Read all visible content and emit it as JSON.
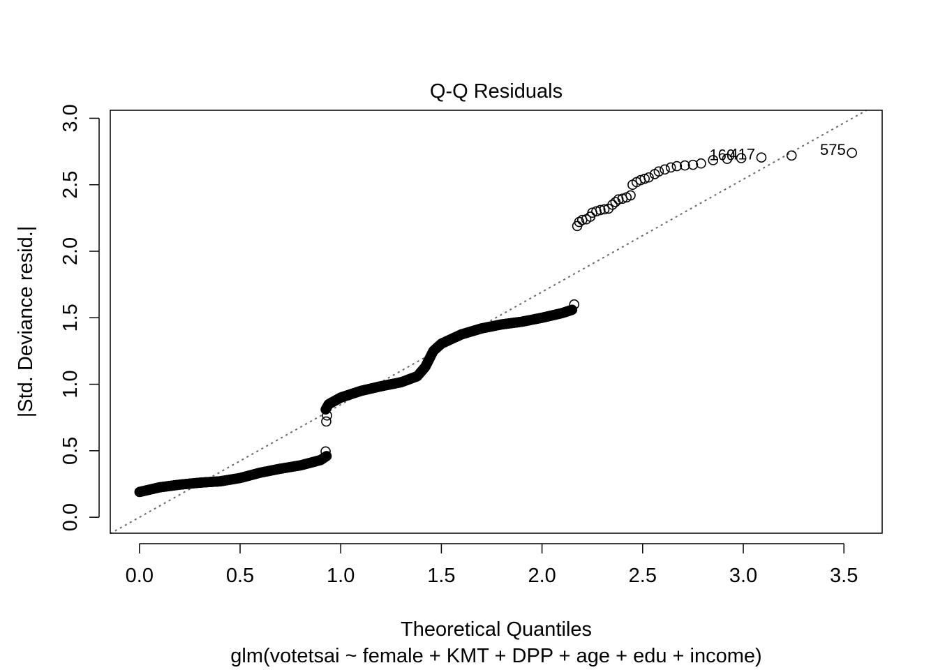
{
  "chart_data": {
    "type": "scatter",
    "title": "Q-Q Residuals",
    "xlabel": "Theoretical Quantiles",
    "ylabel": "|Std. Deviance resid.|",
    "subtitle": "glm(votetsai ~ female + KMT + DPP + age + edu + income)",
    "xlim": [
      -0.145,
      3.69
    ],
    "ylim": [
      -0.12,
      3.06
    ],
    "xticks": [
      "0.0",
      "0.5",
      "1.0",
      "1.5",
      "2.0",
      "2.5",
      "3.0",
      "3.5"
    ],
    "yticks": [
      "0.0",
      "0.5",
      "1.0",
      "1.5",
      "2.0",
      "2.5",
      "3.0"
    ],
    "grid": false,
    "reference_line": {
      "style": "dotted",
      "slope": 0.847,
      "intercept": 0.0,
      "color": "#666666"
    },
    "segments": [
      {
        "x": [
          0.0,
          0.1,
          0.2,
          0.3,
          0.4,
          0.5,
          0.6,
          0.7,
          0.8,
          0.9,
          0.93
        ],
        "y": [
          0.19,
          0.225,
          0.245,
          0.26,
          0.27,
          0.295,
          0.335,
          0.365,
          0.39,
          0.43,
          0.46
        ],
        "n": 350
      },
      {
        "x": [
          0.925,
          0.94,
          1.0,
          1.1,
          1.2,
          1.3,
          1.38,
          1.42,
          1.46,
          1.5,
          1.6,
          1.7,
          1.8,
          1.9,
          2.0,
          2.1,
          2.15
        ],
        "y": [
          0.81,
          0.85,
          0.9,
          0.95,
          0.985,
          1.015,
          1.06,
          1.13,
          1.25,
          1.305,
          1.375,
          1.42,
          1.45,
          1.47,
          1.5,
          1.535,
          1.56
        ],
        "n": 540
      }
    ],
    "points": [
      {
        "x": 0.925,
        "y": 0.495
      },
      {
        "x": 0.928,
        "y": 0.72
      },
      {
        "x": 0.932,
        "y": 0.765
      },
      {
        "x": 2.16,
        "y": 1.6
      },
      {
        "x": 2.175,
        "y": 2.19
      },
      {
        "x": 2.185,
        "y": 2.22
      },
      {
        "x": 2.2,
        "y": 2.235
      },
      {
        "x": 2.22,
        "y": 2.24
      },
      {
        "x": 2.24,
        "y": 2.26
      },
      {
        "x": 2.25,
        "y": 2.29
      },
      {
        "x": 2.27,
        "y": 2.3
      },
      {
        "x": 2.29,
        "y": 2.31
      },
      {
        "x": 2.31,
        "y": 2.315
      },
      {
        "x": 2.33,
        "y": 2.32
      },
      {
        "x": 2.35,
        "y": 2.35
      },
      {
        "x": 2.365,
        "y": 2.37
      },
      {
        "x": 2.38,
        "y": 2.39
      },
      {
        "x": 2.4,
        "y": 2.395
      },
      {
        "x": 2.42,
        "y": 2.405
      },
      {
        "x": 2.44,
        "y": 2.42
      },
      {
        "x": 2.45,
        "y": 2.5
      },
      {
        "x": 2.47,
        "y": 2.52
      },
      {
        "x": 2.49,
        "y": 2.535
      },
      {
        "x": 2.51,
        "y": 2.545
      },
      {
        "x": 2.53,
        "y": 2.555
      },
      {
        "x": 2.56,
        "y": 2.58
      },
      {
        "x": 2.58,
        "y": 2.6
      },
      {
        "x": 2.61,
        "y": 2.615
      },
      {
        "x": 2.64,
        "y": 2.63
      },
      {
        "x": 2.67,
        "y": 2.64
      },
      {
        "x": 2.71,
        "y": 2.645
      },
      {
        "x": 2.75,
        "y": 2.65
      },
      {
        "x": 2.79,
        "y": 2.66
      },
      {
        "x": 2.85,
        "y": 2.685
      },
      {
        "x": 2.92,
        "y": 2.695
      },
      {
        "x": 2.99,
        "y": 2.7,
        "label": "160"
      },
      {
        "x": 3.09,
        "y": 2.705,
        "label": "417"
      },
      {
        "x": 3.24,
        "y": 2.72
      },
      {
        "x": 3.54,
        "y": 2.74,
        "label": "575"
      }
    ],
    "marker": {
      "shape": "open-circle",
      "color": "#000000"
    }
  }
}
